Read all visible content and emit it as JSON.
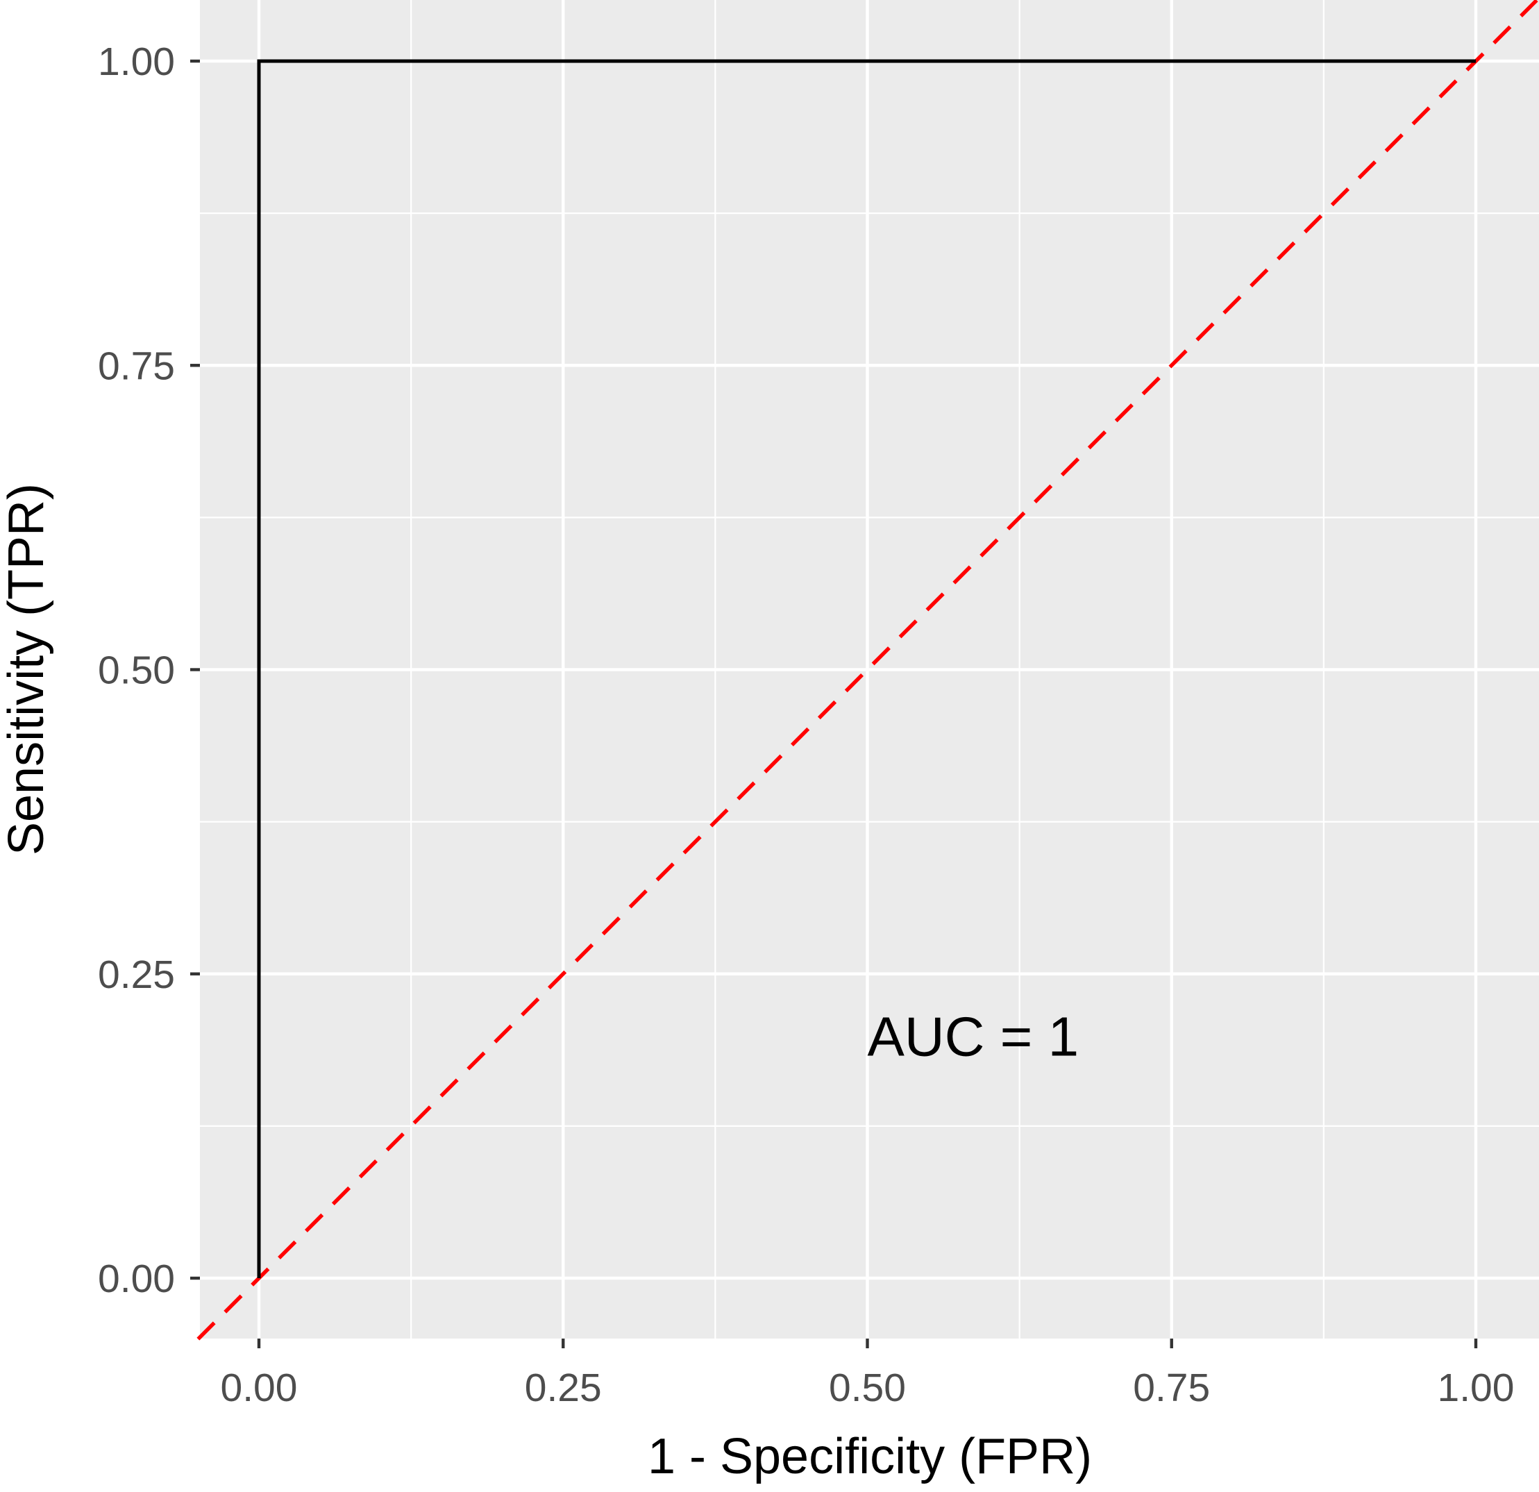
{
  "chart_data": {
    "type": "line",
    "title": "",
    "xlabel": "1 - Specificity (FPR)",
    "ylabel": "Sensitivity (TPR)",
    "xlim": [
      -0.05,
      1.05
    ],
    "ylim": [
      -0.05,
      1.05
    ],
    "x_ticks": [
      {
        "value": 0,
        "label": "0.00"
      },
      {
        "value": 0.25,
        "label": "0.25"
      },
      {
        "value": 0.5,
        "label": "0.50"
      },
      {
        "value": 0.75,
        "label": "0.75"
      },
      {
        "value": 1,
        "label": "1.00"
      }
    ],
    "y_ticks": [
      {
        "value": 0,
        "label": "0.00"
      },
      {
        "value": 0.25,
        "label": "0.25"
      },
      {
        "value": 0.5,
        "label": "0.50"
      },
      {
        "value": 0.75,
        "label": "0.75"
      },
      {
        "value": 1,
        "label": "1.00"
      }
    ],
    "grid": true,
    "series": [
      {
        "style": "solid",
        "color": "#000000",
        "points": [
          [
            0,
            0
          ],
          [
            0,
            1
          ],
          [
            1,
            1
          ]
        ]
      }
    ],
    "reference_line": {
      "style": "dashed",
      "color": "#ff0000",
      "slope": 1,
      "intercept": 0
    },
    "annotations": [
      {
        "text": "AUC = 1",
        "x": 0.5,
        "y": 0.2
      }
    ]
  }
}
